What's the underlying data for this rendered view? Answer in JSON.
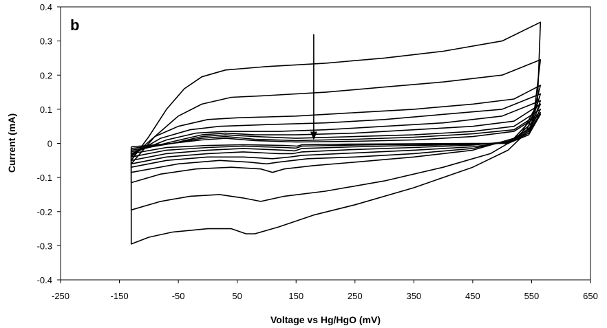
{
  "chart_data": {
    "type": "line",
    "panel_label": "b",
    "title": "",
    "xlabel": "Voltage vs Hg/HgO (mV)",
    "ylabel": "Current (mA)",
    "xlim": [
      -250,
      650
    ],
    "ylim": [
      -0.4,
      0.4
    ],
    "xticks": [
      -250,
      -150,
      -50,
      50,
      150,
      250,
      350,
      450,
      550,
      650
    ],
    "yticks": [
      -0.4,
      -0.3,
      -0.2,
      -0.1,
      0,
      0.1,
      0.2,
      0.3,
      0.4
    ],
    "xtick_labels": [
      "-250",
      "-150",
      "-50",
      "50",
      "150",
      "250",
      "350",
      "450",
      "550",
      "650"
    ],
    "ytick_labels": [
      "-0.4",
      "-0.3",
      "-0.2",
      "-0.1",
      "0",
      "0.1",
      "0.2",
      "0.3",
      "0.4"
    ],
    "grid": false,
    "line_color": "#000000",
    "annotation": {
      "type": "arrow",
      "x": 180,
      "y_start": 0.32,
      "y_end": 0.01
    },
    "series": [
      {
        "upper": [
          [
            -130,
            -0.05
          ],
          [
            -100,
            0.02
          ],
          [
            -70,
            0.1
          ],
          [
            -40,
            0.16
          ],
          [
            -10,
            0.195
          ],
          [
            30,
            0.215
          ],
          [
            100,
            0.225
          ],
          [
            200,
            0.235
          ],
          [
            300,
            0.25
          ],
          [
            400,
            0.27
          ],
          [
            500,
            0.3
          ],
          [
            565,
            0.355
          ]
        ],
        "lower": [
          [
            565,
            0.355
          ],
          [
            560,
            0.12
          ],
          [
            540,
            0.03
          ],
          [
            510,
            -0.02
          ],
          [
            450,
            -0.07
          ],
          [
            350,
            -0.13
          ],
          [
            250,
            -0.18
          ],
          [
            180,
            -0.21
          ],
          [
            120,
            -0.245
          ],
          [
            80,
            -0.265
          ],
          [
            65,
            -0.265
          ],
          [
            40,
            -0.25
          ],
          [
            0,
            -0.25
          ],
          [
            -60,
            -0.26
          ],
          [
            -100,
            -0.275
          ],
          [
            -130,
            -0.295
          ],
          [
            -130,
            -0.05
          ]
        ]
      },
      {
        "upper": [
          [
            -130,
            -0.06
          ],
          [
            -90,
            0.02
          ],
          [
            -50,
            0.08
          ],
          [
            -10,
            0.115
          ],
          [
            40,
            0.135
          ],
          [
            100,
            0.14
          ],
          [
            200,
            0.15
          ],
          [
            300,
            0.165
          ],
          [
            400,
            0.18
          ],
          [
            500,
            0.2
          ],
          [
            565,
            0.245
          ]
        ],
        "lower": [
          [
            565,
            0.245
          ],
          [
            555,
            0.1
          ],
          [
            530,
            0.02
          ],
          [
            480,
            -0.03
          ],
          [
            400,
            -0.07
          ],
          [
            300,
            -0.11
          ],
          [
            200,
            -0.14
          ],
          [
            130,
            -0.155
          ],
          [
            90,
            -0.17
          ],
          [
            60,
            -0.16
          ],
          [
            20,
            -0.15
          ],
          [
            -30,
            -0.155
          ],
          [
            -80,
            -0.17
          ],
          [
            -130,
            -0.195
          ],
          [
            -130,
            -0.06
          ]
        ]
      },
      {
        "upper": [
          [
            -130,
            -0.04
          ],
          [
            -90,
            0.02
          ],
          [
            -50,
            0.05
          ],
          [
            0,
            0.07
          ],
          [
            50,
            0.075
          ],
          [
            150,
            0.08
          ],
          [
            250,
            0.09
          ],
          [
            350,
            0.1
          ],
          [
            450,
            0.115
          ],
          [
            520,
            0.13
          ],
          [
            565,
            0.17
          ]
        ],
        "lower": [
          [
            565,
            0.17
          ],
          [
            550,
            0.07
          ],
          [
            520,
            0.015
          ],
          [
            450,
            -0.02
          ],
          [
            350,
            -0.04
          ],
          [
            250,
            -0.055
          ],
          [
            180,
            -0.065
          ],
          [
            130,
            -0.075
          ],
          [
            110,
            -0.085
          ],
          [
            90,
            -0.075
          ],
          [
            40,
            -0.07
          ],
          [
            -20,
            -0.075
          ],
          [
            -80,
            -0.09
          ],
          [
            -130,
            -0.115
          ],
          [
            -130,
            -0.04
          ]
        ]
      },
      {
        "upper": [
          [
            -130,
            -0.035
          ],
          [
            -80,
            0.015
          ],
          [
            -30,
            0.04
          ],
          [
            20,
            0.05
          ],
          [
            100,
            0.055
          ],
          [
            200,
            0.06
          ],
          [
            300,
            0.07
          ],
          [
            400,
            0.085
          ],
          [
            500,
            0.1
          ],
          [
            565,
            0.145
          ]
        ],
        "lower": [
          [
            565,
            0.145
          ],
          [
            550,
            0.06
          ],
          [
            520,
            0.01
          ],
          [
            450,
            -0.015
          ],
          [
            350,
            -0.03
          ],
          [
            250,
            -0.04
          ],
          [
            170,
            -0.045
          ],
          [
            120,
            -0.055
          ],
          [
            100,
            -0.06
          ],
          [
            70,
            -0.055
          ],
          [
            20,
            -0.05
          ],
          [
            -50,
            -0.06
          ],
          [
            -130,
            -0.085
          ],
          [
            -130,
            -0.035
          ]
        ]
      },
      {
        "upper": [
          [
            -130,
            -0.03
          ],
          [
            -70,
            0.01
          ],
          [
            -20,
            0.03
          ],
          [
            30,
            0.035
          ],
          [
            120,
            0.035
          ],
          [
            200,
            0.04
          ],
          [
            300,
            0.05
          ],
          [
            400,
            0.06
          ],
          [
            500,
            0.08
          ],
          [
            565,
            0.125
          ]
        ],
        "lower": [
          [
            565,
            0.125
          ],
          [
            550,
            0.05
          ],
          [
            515,
            0.005
          ],
          [
            450,
            -0.01
          ],
          [
            350,
            -0.02
          ],
          [
            250,
            -0.028
          ],
          [
            160,
            -0.035
          ],
          [
            140,
            -0.04
          ],
          [
            110,
            -0.045
          ],
          [
            60,
            -0.04
          ],
          [
            0,
            -0.04
          ],
          [
            -70,
            -0.05
          ],
          [
            -130,
            -0.07
          ],
          [
            -130,
            -0.03
          ]
        ]
      },
      {
        "upper": [
          [
            -130,
            -0.025
          ],
          [
            -60,
            0.005
          ],
          [
            -10,
            0.025
          ],
          [
            30,
            0.03
          ],
          [
            80,
            0.025
          ],
          [
            150,
            0.025
          ],
          [
            250,
            0.03
          ],
          [
            350,
            0.04
          ],
          [
            450,
            0.05
          ],
          [
            520,
            0.065
          ],
          [
            565,
            0.115
          ]
        ],
        "lower": [
          [
            565,
            0.115
          ],
          [
            545,
            0.04
          ],
          [
            510,
            0.005
          ],
          [
            450,
            -0.005
          ],
          [
            350,
            -0.012
          ],
          [
            250,
            -0.018
          ],
          [
            160,
            -0.025
          ],
          [
            145,
            -0.03
          ],
          [
            120,
            -0.03
          ],
          [
            60,
            -0.025
          ],
          [
            0,
            -0.03
          ],
          [
            -70,
            -0.04
          ],
          [
            -130,
            -0.06
          ],
          [
            -130,
            -0.025
          ]
        ]
      },
      {
        "upper": [
          [
            -130,
            -0.02
          ],
          [
            -60,
            0.0
          ],
          [
            -10,
            0.02
          ],
          [
            30,
            0.025
          ],
          [
            80,
            0.02
          ],
          [
            150,
            0.015
          ],
          [
            250,
            0.02
          ],
          [
            350,
            0.025
          ],
          [
            450,
            0.035
          ],
          [
            520,
            0.05
          ],
          [
            565,
            0.1
          ]
        ],
        "lower": [
          [
            565,
            0.1
          ],
          [
            545,
            0.035
          ],
          [
            510,
            0.002
          ],
          [
            450,
            -0.003
          ],
          [
            350,
            -0.006
          ],
          [
            250,
            -0.01
          ],
          [
            160,
            -0.015
          ],
          [
            148,
            -0.022
          ],
          [
            130,
            -0.02
          ],
          [
            60,
            -0.015
          ],
          [
            0,
            -0.02
          ],
          [
            -70,
            -0.03
          ],
          [
            -130,
            -0.05
          ],
          [
            -130,
            -0.02
          ]
        ]
      },
      {
        "upper": [
          [
            -130,
            -0.015
          ],
          [
            -60,
            0.0
          ],
          [
            -10,
            0.015
          ],
          [
            30,
            0.02
          ],
          [
            80,
            0.012
          ],
          [
            150,
            0.008
          ],
          [
            250,
            0.012
          ],
          [
            350,
            0.018
          ],
          [
            450,
            0.028
          ],
          [
            520,
            0.04
          ],
          [
            565,
            0.09
          ]
        ],
        "lower": [
          [
            565,
            0.09
          ],
          [
            545,
            0.03
          ],
          [
            510,
            0.0
          ],
          [
            450,
            -0.001
          ],
          [
            350,
            -0.003
          ],
          [
            250,
            -0.005
          ],
          [
            160,
            -0.008
          ],
          [
            150,
            -0.014
          ],
          [
            130,
            -0.012
          ],
          [
            60,
            -0.008
          ],
          [
            0,
            -0.012
          ],
          [
            -70,
            -0.02
          ],
          [
            -130,
            -0.04
          ],
          [
            -130,
            -0.015
          ]
        ]
      },
      {
        "upper": [
          [
            -130,
            -0.01
          ],
          [
            -60,
            0.0
          ],
          [
            -10,
            0.01
          ],
          [
            30,
            0.015
          ],
          [
            80,
            0.008
          ],
          [
            150,
            0.004
          ],
          [
            250,
            0.006
          ],
          [
            350,
            0.01
          ],
          [
            450,
            0.02
          ],
          [
            520,
            0.035
          ],
          [
            565,
            0.085
          ]
        ],
        "lower": [
          [
            565,
            0.085
          ],
          [
            545,
            0.025
          ],
          [
            510,
            0.0
          ],
          [
            450,
            0.0
          ],
          [
            350,
            -0.001
          ],
          [
            250,
            -0.002
          ],
          [
            160,
            -0.004
          ],
          [
            152,
            -0.008
          ],
          [
            130,
            -0.006
          ],
          [
            60,
            -0.004
          ],
          [
            0,
            -0.006
          ],
          [
            -70,
            -0.012
          ],
          [
            -130,
            -0.03
          ],
          [
            -130,
            -0.01
          ]
        ]
      }
    ]
  }
}
